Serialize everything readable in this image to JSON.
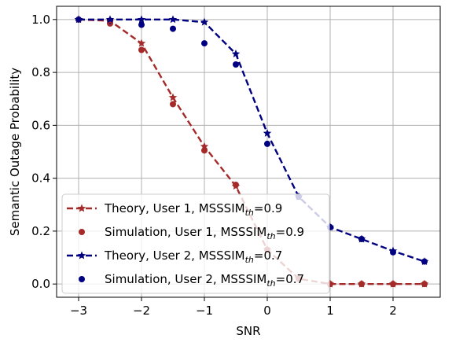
{
  "chart_data": {
    "type": "line",
    "title": "",
    "xlabel": "SNR",
    "ylabel": "Semantic Outage Probability",
    "xlim": [
      -3.35,
      2.75
    ],
    "ylim": [
      -0.05,
      1.05
    ],
    "xticks": [
      -3,
      -2,
      -1,
      0,
      1,
      2
    ],
    "xtick_labels": [
      "−3",
      "−2",
      "−1",
      "0",
      "1",
      "2"
    ],
    "yticks": [
      0.0,
      0.2,
      0.4,
      0.6,
      0.8,
      1.0
    ],
    "ytick_labels": [
      "0.0",
      "0.2",
      "0.4",
      "0.6",
      "0.8",
      "1.0"
    ],
    "grid": true,
    "legend_position": "lower-left",
    "series": [
      {
        "name": "Theory, User 1, MSSSIM",
        "name_sub": "th",
        "name_suffix": "=0.9",
        "kind": "theory",
        "color": "#a52a2a",
        "marker": "star",
        "x": [
          -3,
          -2.5,
          -2,
          -1.5,
          -1,
          -0.5,
          0,
          0.5,
          1,
          1.5,
          2,
          2.5
        ],
        "y": [
          1.0,
          0.995,
          0.91,
          0.705,
          0.52,
          0.37,
          0.13,
          0.02,
          0.0,
          0.0,
          0.0,
          0.0
        ]
      },
      {
        "name": "Simulation, User 1, MSSSIM",
        "name_sub": "th",
        "name_suffix": "=0.9",
        "kind": "simulation",
        "color": "#a52a2a",
        "marker": "circle",
        "x": [
          -3,
          -2.5,
          -2,
          -1.5,
          -1,
          -0.5,
          0,
          0.5,
          1,
          1.5,
          2,
          2.5
        ],
        "y": [
          1.0,
          0.985,
          0.885,
          0.68,
          0.505,
          0.375,
          0.13,
          0.02,
          0.0,
          0.0,
          0.0,
          0.0
        ]
      },
      {
        "name": "Theory, User 2, MSSSIM",
        "name_sub": "th",
        "name_suffix": "=0.7",
        "kind": "theory",
        "color": "#000080",
        "marker": "star",
        "x": [
          -3,
          -2.5,
          -2,
          -1.5,
          -1,
          -0.5,
          0,
          0.5,
          1,
          1.5,
          2,
          2.5
        ],
        "y": [
          1.0,
          1.0,
          1.0,
          1.0,
          0.99,
          0.87,
          0.57,
          0.33,
          0.215,
          0.17,
          0.125,
          0.085
        ]
      },
      {
        "name": "Simulation, User 2, MSSSIM",
        "name_sub": "th",
        "name_suffix": "=0.7",
        "kind": "simulation",
        "color": "#000080",
        "marker": "circle",
        "x": [
          -3,
          -2.5,
          -2,
          -1.5,
          -1,
          -0.5,
          0,
          0.5,
          1,
          1.5,
          2,
          2.5
        ],
        "y": [
          1.0,
          0.995,
          0.98,
          0.965,
          0.91,
          0.83,
          0.53,
          0.33,
          0.215,
          0.17,
          0.12,
          0.085
        ]
      }
    ]
  }
}
